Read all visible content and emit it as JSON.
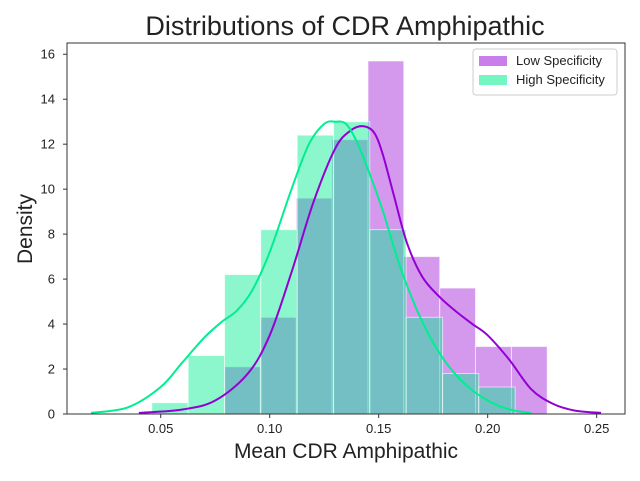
{
  "chart_data": {
    "type": "histogram",
    "title": "Distributions of CDR Amphipathic",
    "xlabel": "Mean CDR Amphipathic",
    "ylabel": "Density",
    "xlim": [
      0.007,
      0.263
    ],
    "ylim": [
      0,
      16.5
    ],
    "xticks": [
      0.05,
      0.1,
      0.15,
      0.2,
      0.25
    ],
    "xtick_labels": [
      "0.05",
      "0.10",
      "0.15",
      "0.20",
      "0.25"
    ],
    "yticks": [
      0,
      2,
      4,
      6,
      8,
      10,
      12,
      14,
      16
    ],
    "ytick_labels": [
      "0",
      "2",
      "4",
      "6",
      "8",
      "10",
      "12",
      "14",
      "16"
    ],
    "grid": false,
    "legend_position": "top-right",
    "series": [
      {
        "name": "Low Specificity",
        "color": "#9400d3",
        "bar_opacity": 0.4,
        "bins": [
          {
            "x0": 0.0793,
            "x1": 0.0957,
            "value": 2.1
          },
          {
            "x0": 0.0957,
            "x1": 0.1122,
            "value": 4.3
          },
          {
            "x0": 0.1122,
            "x1": 0.1286,
            "value": 9.6
          },
          {
            "x0": 0.1286,
            "x1": 0.1451,
            "value": 12.2
          },
          {
            "x0": 0.1451,
            "x1": 0.1615,
            "value": 15.7
          },
          {
            "x0": 0.1615,
            "x1": 0.178,
            "value": 7.0
          },
          {
            "x0": 0.178,
            "x1": 0.1944,
            "value": 5.6
          },
          {
            "x0": 0.1944,
            "x1": 0.2109,
            "value": 3.0
          },
          {
            "x0": 0.2109,
            "x1": 0.2273,
            "value": 3.0
          }
        ],
        "kde": {
          "x": [
            0.04,
            0.06,
            0.075,
            0.09,
            0.1,
            0.11,
            0.12,
            0.13,
            0.137,
            0.143,
            0.148,
            0.152,
            0.157,
            0.163,
            0.17,
            0.178,
            0.185,
            0.193,
            0.2,
            0.21,
            0.22,
            0.23,
            0.24,
            0.252
          ],
          "y": [
            0.05,
            0.2,
            0.6,
            1.8,
            3.5,
            6.3,
            9.4,
            11.8,
            12.6,
            12.8,
            12.5,
            11.5,
            9.7,
            7.6,
            6.1,
            5.2,
            4.6,
            4.0,
            3.5,
            2.4,
            1.1,
            0.45,
            0.15,
            0.05
          ]
        }
      },
      {
        "name": "High Specificity",
        "color": "#00ee90",
        "bar_opacity": 0.45,
        "bins": [
          {
            "x0": 0.0459,
            "x1": 0.0626,
            "value": 0.5
          },
          {
            "x0": 0.0626,
            "x1": 0.0793,
            "value": 2.6
          },
          {
            "x0": 0.0793,
            "x1": 0.0959,
            "value": 6.2
          },
          {
            "x0": 0.0959,
            "x1": 0.1126,
            "value": 8.2
          },
          {
            "x0": 0.1126,
            "x1": 0.1293,
            "value": 12.4
          },
          {
            "x0": 0.1293,
            "x1": 0.1459,
            "value": 13.0
          },
          {
            "x0": 0.1459,
            "x1": 0.1626,
            "value": 8.2
          },
          {
            "x0": 0.1626,
            "x1": 0.1793,
            "value": 4.3
          },
          {
            "x0": 0.1793,
            "x1": 0.1959,
            "value": 1.8
          },
          {
            "x0": 0.1959,
            "x1": 0.2126,
            "value": 1.2
          }
        ],
        "kde": {
          "x": [
            0.018,
            0.035,
            0.05,
            0.06,
            0.07,
            0.078,
            0.085,
            0.092,
            0.1,
            0.11,
            0.118,
            0.125,
            0.13,
            0.135,
            0.14,
            0.145,
            0.152,
            0.16,
            0.17,
            0.18,
            0.19,
            0.2,
            0.21,
            0.22
          ],
          "y": [
            0.05,
            0.3,
            1.2,
            2.3,
            3.4,
            4.1,
            4.6,
            5.5,
            7.2,
            10.0,
            12.0,
            12.9,
            13.0,
            12.9,
            12.1,
            10.9,
            9.0,
            6.5,
            4.1,
            2.4,
            1.3,
            0.6,
            0.2,
            0.05
          ]
        }
      }
    ]
  }
}
